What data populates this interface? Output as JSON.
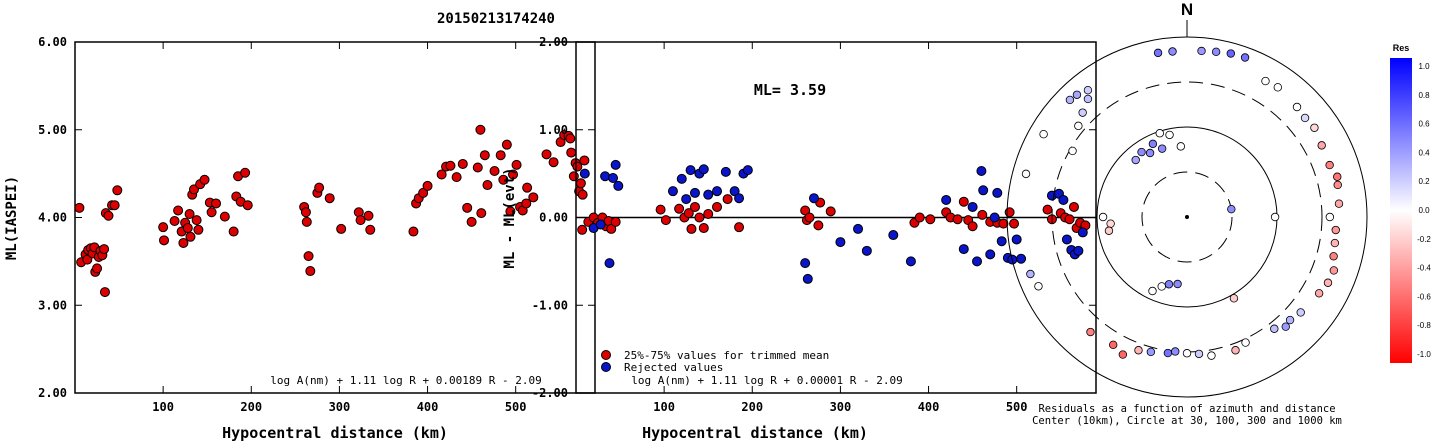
{
  "title": "20150213174240",
  "left_panel": {
    "ylabel": "ML(IASPEI)",
    "xlabel": "Hypocentral distance (km)",
    "formula": "log A(nm) + 1.11 log R + 0.00189 R - 2.09",
    "y_ticks": [
      "2.00",
      "3.00",
      "4.00",
      "5.00",
      "6.00"
    ],
    "x_ticks": [
      "100",
      "200",
      "300",
      "400",
      "500"
    ]
  },
  "middle_panel": {
    "ylabel": "ML - ML(evt)",
    "xlabel": "Hypocentral distance (km)",
    "ml_label": "ML= 3.59",
    "formula": "log A(nm) + 1.11 log R + 0.00001 R - 2.09",
    "legend_trimmed": "25%-75% values for trimmed mean",
    "legend_rejected": "Rejected values",
    "y_ticks": [
      "-2.00",
      "-1.00",
      "0.00",
      "1.00",
      "2.00"
    ],
    "x_ticks": [
      "100",
      "200",
      "300",
      "400",
      "500"
    ]
  },
  "polar_panel": {
    "north_label": "N",
    "caption_line1": "Residuals as a function of azimuth and distance",
    "caption_line2": "Center (10km), Circle at 30, 100, 300 and 1000 km"
  },
  "colorbar": {
    "title": "Res",
    "ticks": [
      "1.0",
      "0.8",
      "0.6",
      "0.4",
      "0.2",
      "0.0",
      "-0.2",
      "-0.4",
      "-0.6",
      "-0.8",
      "-1.0"
    ]
  },
  "colors": {
    "trimmed": "#dd0000",
    "rejected": "#0a14c8",
    "positive": "#0000ff",
    "negative": "#ff0000"
  },
  "chart_data": [
    {
      "type": "scatter",
      "panel": "left",
      "xlabel": "Hypocentral distance (km)",
      "ylabel": "ML(IASPEI)",
      "xlim": [
        0,
        590
      ],
      "ylim": [
        2.0,
        6.0
      ],
      "points": [
        [
          5,
          4.11
        ],
        [
          7,
          3.49
        ],
        [
          12,
          3.58
        ],
        [
          14,
          3.52
        ],
        [
          15,
          3.63
        ],
        [
          18,
          3.65
        ],
        [
          20,
          3.59
        ],
        [
          22,
          3.66
        ],
        [
          23,
          3.38
        ],
        [
          25,
          3.42
        ],
        [
          27,
          3.55
        ],
        [
          29,
          3.62
        ],
        [
          31,
          3.57
        ],
        [
          33,
          3.64
        ],
        [
          34,
          3.15
        ],
        [
          35,
          4.05
        ],
        [
          38,
          4.02
        ],
        [
          42,
          4.14
        ],
        [
          45,
          4.14
        ],
        [
          48,
          4.31
        ],
        [
          100,
          3.89
        ],
        [
          101,
          3.74
        ],
        [
          113,
          3.96
        ],
        [
          117,
          4.08
        ],
        [
          121,
          3.84
        ],
        [
          123,
          3.71
        ],
        [
          125,
          3.94
        ],
        [
          128,
          3.88
        ],
        [
          130,
          4.04
        ],
        [
          131,
          3.78
        ],
        [
          133,
          4.26
        ],
        [
          135,
          4.32
        ],
        [
          138,
          3.97
        ],
        [
          140,
          3.86
        ],
        [
          142,
          4.38
        ],
        [
          147,
          4.43
        ],
        [
          153,
          4.17
        ],
        [
          155,
          4.06
        ],
        [
          160,
          4.16
        ],
        [
          170,
          4.01
        ],
        [
          180,
          3.84
        ],
        [
          183,
          4.24
        ],
        [
          185,
          4.47
        ],
        [
          188,
          4.18
        ],
        [
          193,
          4.51
        ],
        [
          196,
          4.14
        ],
        [
          260,
          4.12
        ],
        [
          262,
          4.06
        ],
        [
          263,
          3.95
        ],
        [
          265,
          3.56
        ],
        [
          267,
          3.39
        ],
        [
          275,
          4.28
        ],
        [
          277,
          4.34
        ],
        [
          289,
          4.22
        ],
        [
          302,
          3.87
        ],
        [
          322,
          4.06
        ],
        [
          324,
          3.97
        ],
        [
          333,
          4.02
        ],
        [
          335,
          3.86
        ],
        [
          384,
          3.84
        ],
        [
          387,
          4.16
        ],
        [
          390,
          4.22
        ],
        [
          395,
          4.28
        ],
        [
          400,
          4.36
        ],
        [
          416,
          4.49
        ],
        [
          421,
          4.58
        ],
        [
          426,
          4.59
        ],
        [
          433,
          4.46
        ],
        [
          440,
          4.61
        ],
        [
          445,
          4.11
        ],
        [
          450,
          3.95
        ],
        [
          457,
          4.57
        ],
        [
          460,
          5.0
        ],
        [
          461,
          4.05
        ],
        [
          465,
          4.71
        ],
        [
          468,
          4.37
        ],
        [
          476,
          4.53
        ],
        [
          483,
          4.71
        ],
        [
          486,
          4.43
        ],
        [
          490,
          4.83
        ],
        [
          494,
          4.07
        ],
        [
          497,
          4.49
        ],
        [
          501,
          4.6
        ],
        [
          505,
          4.12
        ],
        [
          508,
          4.08
        ],
        [
          512,
          4.16
        ],
        [
          513,
          4.34
        ],
        [
          520,
          4.23
        ],
        [
          535,
          4.72
        ],
        [
          543,
          4.63
        ],
        [
          551,
          4.86
        ],
        [
          555,
          4.94
        ],
        [
          560,
          4.93
        ],
        [
          562,
          4.9
        ],
        [
          563,
          4.74
        ],
        [
          566,
          4.47
        ],
        [
          568,
          4.62
        ],
        [
          570,
          4.58
        ],
        [
          572,
          4.3
        ],
        [
          574,
          4.39
        ],
        [
          576,
          4.26
        ],
        [
          578,
          4.65
        ]
      ]
    },
    {
      "type": "scatter",
      "panel": "middle",
      "xlabel": "Hypocentral distance (km)",
      "ylabel": "ML - ML(evt)",
      "xlim": [
        0,
        590
      ],
      "ylim": [
        -2.0,
        2.0
      ],
      "reference_line": 0.0,
      "series": [
        {
          "name": "25%-75% values for trimmed mean",
          "points": [
            [
              7,
              -0.14
            ],
            [
              14,
              -0.05
            ],
            [
              20,
              0.0
            ],
            [
              25,
              -0.06
            ],
            [
              30,
              0.0
            ],
            [
              34,
              -0.1
            ],
            [
              37,
              -0.04
            ],
            [
              40,
              -0.13
            ],
            [
              45,
              -0.05
            ],
            [
              96,
              0.09
            ],
            [
              102,
              -0.03
            ],
            [
              117,
              0.1
            ],
            [
              123,
              0.0
            ],
            [
              128,
              0.05
            ],
            [
              131,
              -0.13
            ],
            [
              135,
              0.12
            ],
            [
              140,
              0.0
            ],
            [
              145,
              -0.12
            ],
            [
              150,
              0.04
            ],
            [
              160,
              0.12
            ],
            [
              172,
              0.21
            ],
            [
              185,
              -0.11
            ],
            [
              260,
              0.08
            ],
            [
              262,
              -0.03
            ],
            [
              265,
              0.0
            ],
            [
              275,
              -0.09
            ],
            [
              277,
              0.17
            ],
            [
              289,
              0.07
            ],
            [
              384,
              -0.06
            ],
            [
              390,
              0.0
            ],
            [
              402,
              -0.02
            ],
            [
              420,
              0.06
            ],
            [
              425,
              0.0
            ],
            [
              433,
              -0.02
            ],
            [
              440,
              0.18
            ],
            [
              445,
              -0.03
            ],
            [
              450,
              -0.1
            ],
            [
              461,
              0.03
            ],
            [
              470,
              -0.05
            ],
            [
              478,
              -0.06
            ],
            [
              485,
              -0.07
            ],
            [
              492,
              0.06
            ],
            [
              497,
              -0.07
            ],
            [
              535,
              0.09
            ],
            [
              540,
              -0.02
            ],
            [
              550,
              0.05
            ],
            [
              555,
              0.0
            ],
            [
              560,
              -0.02
            ],
            [
              565,
              0.12
            ],
            [
              568,
              -0.12
            ],
            [
              572,
              -0.06
            ],
            [
              578,
              -0.09
            ]
          ]
        },
        {
          "name": "Rejected values",
          "points": [
            [
              10,
              0.5
            ],
            [
              20,
              -0.12
            ],
            [
              28,
              -0.08
            ],
            [
              33,
              0.47
            ],
            [
              38,
              -0.52
            ],
            [
              42,
              0.45
            ],
            [
              45,
              0.6
            ],
            [
              48,
              0.36
            ],
            [
              110,
              0.3
            ],
            [
              120,
              0.44
            ],
            [
              125,
              0.21
            ],
            [
              130,
              0.54
            ],
            [
              135,
              0.28
            ],
            [
              140,
              0.5
            ],
            [
              145,
              0.55
            ],
            [
              150,
              0.26
            ],
            [
              160,
              0.3
            ],
            [
              170,
              0.52
            ],
            [
              180,
              0.3
            ],
            [
              185,
              0.22
            ],
            [
              190,
              0.5
            ],
            [
              195,
              0.54
            ],
            [
              260,
              -0.52
            ],
            [
              263,
              -0.7
            ],
            [
              270,
              0.22
            ],
            [
              300,
              -0.28
            ],
            [
              320,
              -0.13
            ],
            [
              330,
              -0.38
            ],
            [
              360,
              -0.2
            ],
            [
              380,
              -0.5
            ],
            [
              420,
              0.2
            ],
            [
              440,
              -0.36
            ],
            [
              450,
              0.12
            ],
            [
              455,
              -0.5
            ],
            [
              460,
              0.53
            ],
            [
              462,
              0.31
            ],
            [
              470,
              -0.42
            ],
            [
              475,
              0.0
            ],
            [
              478,
              0.28
            ],
            [
              483,
              -0.27
            ],
            [
              490,
              -0.46
            ],
            [
              495,
              -0.48
            ],
            [
              500,
              -0.25
            ],
            [
              505,
              -0.47
            ],
            [
              540,
              0.25
            ],
            [
              548,
              0.27
            ],
            [
              553,
              0.2
            ],
            [
              557,
              -0.25
            ],
            [
              562,
              -0.37
            ],
            [
              566,
              -0.42
            ],
            [
              570,
              -0.38
            ],
            [
              575,
              -0.17
            ]
          ]
        }
      ]
    },
    {
      "type": "scatter",
      "panel": "polar",
      "description_axis": "azimuth (deg from N) and hypocentral distance (km), color = residual",
      "rings_km": [
        30,
        100,
        300,
        1000
      ],
      "center_km": 10,
      "points": [
        [
          -5,
          60,
          0.0
        ],
        [
          -12,
          85,
          0.0
        ],
        [
          -20,
          63,
          0.45
        ],
        [
          -25,
          78,
          0.5
        ],
        [
          -30,
          65,
          0.45
        ],
        [
          -35,
          75,
          0.45
        ],
        [
          -42,
          70,
          0.35
        ],
        [
          -18,
          95,
          0.0
        ],
        [
          -160,
          65,
          0.0
        ],
        [
          -165,
          58,
          0.5
        ],
        [
          -172,
          55,
          0.45
        ],
        [
          -155,
          80,
          0.0
        ],
        [
          80,
          30,
          0.45
        ],
        [
          90,
          95,
          0.0
        ],
        [
          -95,
          70,
          -0.15
        ],
        [
          -100,
          75,
          -0.2
        ],
        [
          -90,
          85,
          0.0
        ],
        [
          150,
          110,
          -0.2
        ],
        [
          -60,
          280,
          0.0
        ],
        [
          -50,
          360,
          0.0
        ],
        [
          -45,
          420,
          0.2
        ],
        [
          -40,
          500,
          0.25
        ],
        [
          -10,
          700,
          0.55
        ],
        [
          -5,
          690,
          0.45
        ],
        [
          5,
          700,
          0.4
        ],
        [
          10,
          720,
          0.45
        ],
        [
          15,
          750,
          0.6
        ],
        [
          20,
          760,
          0.55
        ],
        [
          30,
          540,
          0.0
        ],
        [
          35,
          560,
          0.0
        ],
        [
          45,
          520,
          0.0
        ],
        [
          50,
          500,
          0.15
        ],
        [
          55,
          520,
          -0.15
        ],
        [
          62,
          480,
          -0.35
        ],
        [
          70,
          470,
          -0.5
        ],
        [
          75,
          520,
          -0.55
        ],
        [
          78,
          500,
          -0.45
        ],
        [
          85,
          480,
          -0.35
        ],
        [
          90,
          370,
          0.0
        ],
        [
          95,
          440,
          -0.4
        ],
        [
          100,
          450,
          -0.3
        ],
        [
          105,
          470,
          -0.5
        ],
        [
          110,
          530,
          -0.4
        ],
        [
          115,
          520,
          -0.3
        ],
        [
          120,
          480,
          -0.35
        ],
        [
          130,
          430,
          0.2
        ],
        [
          135,
          400,
          0.3
        ],
        [
          138,
          420,
          0.4
        ],
        [
          142,
          360,
          0.25
        ],
        [
          155,
          330,
          0.0
        ],
        [
          160,
          360,
          -0.3
        ],
        [
          170,
          350,
          0.0
        ],
        [
          175,
          320,
          0.2
        ],
        [
          180,
          310,
          0.0
        ],
        [
          185,
          300,
          0.45
        ],
        [
          188,
          320,
          0.55
        ],
        [
          195,
          340,
          0.4
        ],
        [
          200,
          360,
          -0.3
        ],
        [
          205,
          470,
          -0.6
        ],
        [
          210,
          420,
          -0.6
        ],
        [
          220,
          450,
          -0.5
        ],
        [
          245,
          650,
          0.0
        ],
        [
          250,
          700,
          0.3
        ],
        [
          285,
          700,
          0.0
        ],
        [
          300,
          680,
          0.0
        ],
        [
          315,
          680,
          0.3
        ],
        [
          318,
          660,
          0.35
        ],
        [
          322,
          600,
          0.2
        ]
      ]
    }
  ]
}
